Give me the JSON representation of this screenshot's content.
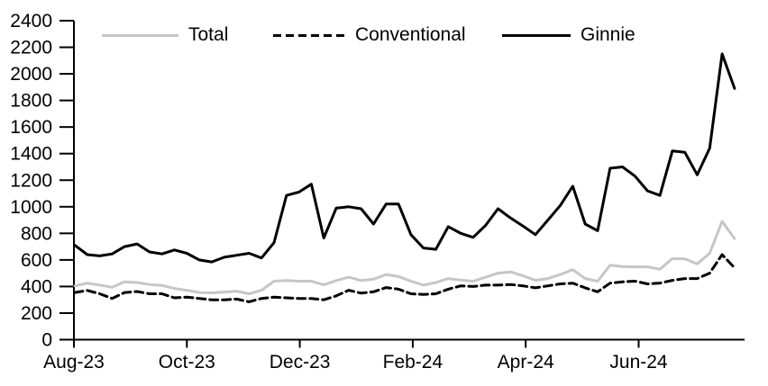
{
  "chart_data": {
    "type": "line",
    "title": "",
    "xlabel": "",
    "ylabel": "",
    "ylim": [
      0,
      2400
    ],
    "y_ticks": [
      0,
      200,
      400,
      600,
      800,
      1000,
      1200,
      1400,
      1600,
      1800,
      2000,
      2200,
      2400
    ],
    "x_tick_labels": [
      "Aug-23",
      "Oct-23",
      "Dec-23",
      "Feb-24",
      "Apr-24",
      "Jun-24"
    ],
    "x_frequency": "weekly",
    "grid": false,
    "legend_position": "top",
    "axis_color": "#000000",
    "background_color": "#ffffff",
    "series": [
      {
        "name": "Total",
        "color": "#c6c6c6",
        "line_style": "solid",
        "values": [
          405,
          425,
          410,
          395,
          435,
          430,
          415,
          408,
          385,
          372,
          355,
          352,
          358,
          365,
          345,
          372,
          440,
          445,
          440,
          440,
          412,
          445,
          470,
          445,
          455,
          490,
          475,
          440,
          410,
          430,
          460,
          448,
          440,
          470,
          500,
          510,
          480,
          447,
          460,
          490,
          527,
          460,
          440,
          560,
          550,
          548,
          548,
          530,
          610,
          608,
          570,
          650,
          890,
          760
        ]
      },
      {
        "name": "Conventional",
        "color": "#000000",
        "line_style": "dashed",
        "values": [
          355,
          370,
          345,
          310,
          355,
          362,
          345,
          345,
          315,
          320,
          310,
          300,
          300,
          305,
          285,
          310,
          320,
          315,
          310,
          310,
          300,
          330,
          372,
          350,
          360,
          392,
          380,
          345,
          340,
          345,
          380,
          405,
          400,
          410,
          410,
          415,
          405,
          390,
          405,
          420,
          425,
          390,
          360,
          425,
          435,
          440,
          420,
          426,
          446,
          460,
          460,
          500,
          640,
          540
        ]
      },
      {
        "name": "Ginnie",
        "color": "#000000",
        "line_style": "solid",
        "values": [
          710,
          640,
          630,
          645,
          700,
          720,
          660,
          645,
          675,
          650,
          600,
          585,
          620,
          635,
          650,
          615,
          730,
          1085,
          1110,
          1170,
          765,
          990,
          1000,
          985,
          870,
          1020,
          1020,
          790,
          690,
          680,
          850,
          800,
          770,
          860,
          985,
          915,
          855,
          790,
          900,
          1010,
          1155,
          870,
          820,
          1290,
          1300,
          1230,
          1120,
          1085,
          1420,
          1410,
          1240,
          1440,
          2150,
          1890
        ]
      }
    ]
  }
}
